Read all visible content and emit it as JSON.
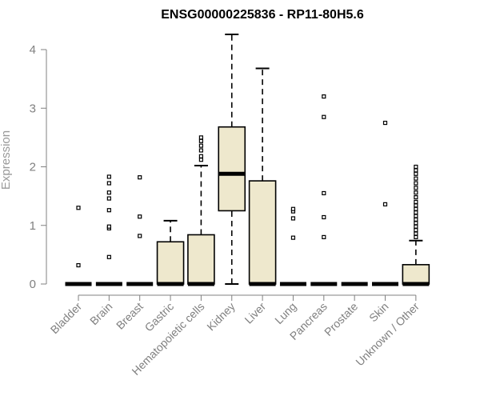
{
  "chart_data": {
    "type": "box",
    "title": "ENSG00000225836 - RP11-80H5.6",
    "xlabel": "",
    "ylabel": "Expression",
    "ylim": [
      0,
      4.3
    ],
    "yticks": [
      "0",
      "1",
      "2",
      "3",
      "4"
    ],
    "grid": false,
    "legend": "none",
    "box_fill": "#EEE8CD",
    "categories": [
      "Bladder",
      "Brain",
      "Breast",
      "Gastric",
      "Hematopoietic cells",
      "Kidney",
      "Liver",
      "Lung",
      "Pancreas",
      "Prostate",
      "Skin",
      "Unknown / Other"
    ],
    "boxes": [
      {
        "category": "Bladder",
        "min": 0,
        "q1": 0,
        "median": 0,
        "q3": 0,
        "max": 0,
        "outliers": [
          0.32,
          1.3
        ]
      },
      {
        "category": "Brain",
        "min": 0,
        "q1": 0,
        "median": 0,
        "q3": 0,
        "max": 0,
        "outliers": [
          0.46,
          0.95,
          0.98,
          1.26,
          1.46,
          1.56,
          1.72,
          1.83
        ]
      },
      {
        "category": "Breast",
        "min": 0,
        "q1": 0,
        "median": 0,
        "q3": 0,
        "max": 0,
        "outliers": [
          0.82,
          1.15,
          1.82
        ]
      },
      {
        "category": "Gastric",
        "min": 0,
        "q1": 0,
        "median": 0,
        "q3": 0.72,
        "max": 1.08,
        "outliers": []
      },
      {
        "category": "Hematopoietic cells",
        "min": 0,
        "q1": 0,
        "median": 0,
        "q3": 0.84,
        "max": 2.02,
        "outliers": [
          2.12,
          2.18,
          2.28,
          2.36,
          2.44,
          2.5
        ]
      },
      {
        "category": "Kidney",
        "min": 0,
        "q1": 1.25,
        "median": 1.88,
        "q3": 2.68,
        "max": 4.26,
        "outliers": []
      },
      {
        "category": "Liver",
        "min": 0,
        "q1": 0,
        "median": 0,
        "q3": 1.76,
        "max": 3.68,
        "outliers": []
      },
      {
        "category": "Lung",
        "min": 0,
        "q1": 0,
        "median": 0,
        "q3": 0,
        "max": 0,
        "outliers": [
          0.79,
          1.12,
          1.24,
          1.28
        ]
      },
      {
        "category": "Pancreas",
        "min": 0,
        "q1": 0,
        "median": 0,
        "q3": 0,
        "max": 0,
        "outliers": [
          0.8,
          1.14,
          1.55,
          2.85,
          3.2
        ]
      },
      {
        "category": "Prostate",
        "min": 0,
        "q1": 0,
        "median": 0,
        "q3": 0,
        "max": 0,
        "outliers": []
      },
      {
        "category": "Skin",
        "min": 0,
        "q1": 0,
        "median": 0,
        "q3": 0,
        "max": 0,
        "outliers": [
          1.36,
          2.75
        ]
      },
      {
        "category": "Unknown / Other",
        "min": 0,
        "q1": 0,
        "median": 0,
        "q3": 0.33,
        "max": 0.74,
        "outliers": [
          0.8,
          0.86,
          0.92,
          0.98,
          1.04,
          1.1,
          1.16,
          1.22,
          1.28,
          1.34,
          1.4,
          1.48,
          1.56,
          1.64,
          1.72,
          1.8,
          1.88,
          1.94,
          2.0
        ]
      }
    ]
  }
}
